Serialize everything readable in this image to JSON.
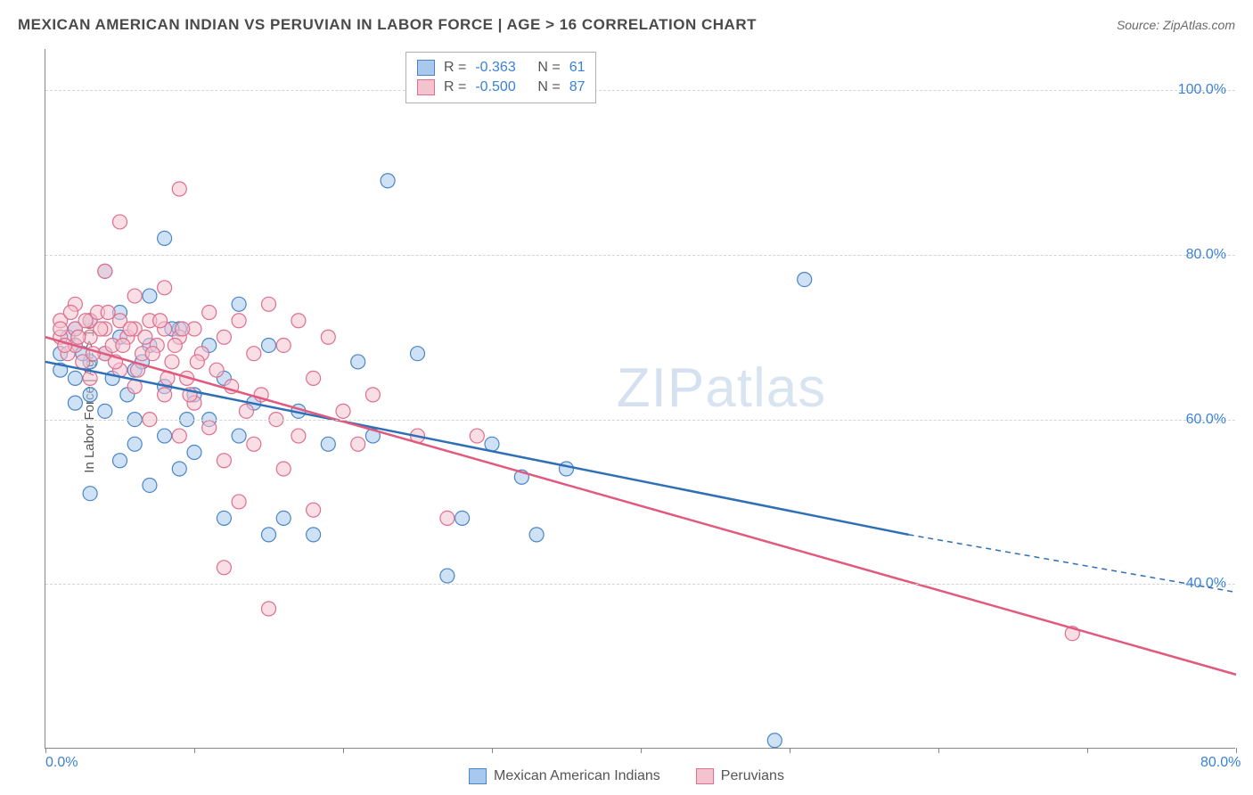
{
  "title": "MEXICAN AMERICAN INDIAN VS PERUVIAN IN LABOR FORCE | AGE > 16 CORRELATION CHART",
  "source": "Source: ZipAtlas.com",
  "y_axis_title": "In Labor Force | Age > 16",
  "watermark": {
    "bold": "ZIP",
    "thin": "atlas"
  },
  "chart": {
    "type": "scatter",
    "background_color": "#ffffff",
    "grid_color": "#d5d5d5",
    "axis_color": "#888888",
    "xlim": [
      0,
      80
    ],
    "ylim": [
      20,
      105
    ],
    "x_ticks": [
      0,
      10,
      20,
      30,
      40,
      50,
      60,
      70,
      80
    ],
    "x_tick_labels": {
      "0": "0.0%",
      "80": "80.0%"
    },
    "y_gridlines": [
      40,
      60,
      80,
      100
    ],
    "y_tick_labels": {
      "40": "40.0%",
      "60": "60.0%",
      "80": "80.0%",
      "100": "100.0%"
    },
    "label_color": "#3b82d6",
    "label_fontsize": 16,
    "marker_radius": 8,
    "marker_opacity": 0.55,
    "marker_stroke_width": 1.2,
    "line_width": 2.5
  },
  "series": [
    {
      "name": "Mexican American Indians",
      "fill_color": "#a8c8ed",
      "stroke_color": "#4a86c7",
      "line_color": "#2f6fb5",
      "r_label": "R =",
      "r_value": "-0.363",
      "n_label": "N =",
      "n_value": "61",
      "trend": {
        "x1": 0,
        "y1": 67,
        "x2_solid": 58,
        "y2_solid": 46,
        "x2_dash": 80,
        "y2_dash": 39
      },
      "points": [
        [
          1,
          68
        ],
        [
          1,
          66
        ],
        [
          2,
          69
        ],
        [
          2,
          65
        ],
        [
          2,
          71
        ],
        [
          3,
          67
        ],
        [
          3,
          63
        ],
        [
          3,
          72
        ],
        [
          4,
          68
        ],
        [
          4,
          61
        ],
        [
          5,
          70
        ],
        [
          5,
          55
        ],
        [
          5,
          73
        ],
        [
          6,
          66
        ],
        [
          6,
          60
        ],
        [
          7,
          69
        ],
        [
          7,
          52
        ],
        [
          8,
          82
        ],
        [
          8,
          64
        ],
        [
          8,
          58
        ],
        [
          9,
          71
        ],
        [
          10,
          63
        ],
        [
          10,
          56
        ],
        [
          11,
          69
        ],
        [
          11,
          60
        ],
        [
          12,
          65
        ],
        [
          12,
          48
        ],
        [
          13,
          74
        ],
        [
          13,
          58
        ],
        [
          14,
          62
        ],
        [
          15,
          69
        ],
        [
          15,
          46
        ],
        [
          16,
          48
        ],
        [
          17,
          61
        ],
        [
          18,
          46
        ],
        [
          19,
          57
        ],
        [
          21,
          67
        ],
        [
          22,
          58
        ],
        [
          23,
          89
        ],
        [
          25,
          68
        ],
        [
          27,
          41
        ],
        [
          28,
          48
        ],
        [
          30,
          57
        ],
        [
          32,
          53
        ],
        [
          33,
          46
        ],
        [
          35,
          54
        ],
        [
          49,
          21
        ],
        [
          51,
          77
        ],
        [
          3,
          51
        ],
        [
          6,
          57
        ],
        [
          9,
          54
        ],
        [
          4,
          78
        ],
        [
          7,
          75
        ],
        [
          2,
          62
        ],
        [
          1.5,
          70
        ],
        [
          2.5,
          68
        ],
        [
          4.5,
          65
        ],
        [
          5.5,
          63
        ],
        [
          6.5,
          67
        ],
        [
          8.5,
          71
        ],
        [
          9.5,
          60
        ]
      ]
    },
    {
      "name": "Peruvians",
      "fill_color": "#f4c3d0",
      "stroke_color": "#de6f8e",
      "line_color": "#e15a7e",
      "r_label": "R =",
      "r_value": "-0.500",
      "n_label": "N =",
      "n_value": "87",
      "trend": {
        "x1": 0,
        "y1": 70,
        "x2_solid": 80,
        "y2_solid": 29,
        "x2_dash": 80,
        "y2_dash": 29
      },
      "points": [
        [
          1,
          70
        ],
        [
          1,
          72
        ],
        [
          1.5,
          68
        ],
        [
          2,
          71
        ],
        [
          2,
          69
        ],
        [
          2,
          74
        ],
        [
          2.5,
          67
        ],
        [
          3,
          72
        ],
        [
          3,
          70
        ],
        [
          3,
          65
        ],
        [
          3.5,
          73
        ],
        [
          4,
          71
        ],
        [
          4,
          68
        ],
        [
          4,
          78
        ],
        [
          4.5,
          69
        ],
        [
          5,
          72
        ],
        [
          5,
          66
        ],
        [
          5,
          84
        ],
        [
          5.5,
          70
        ],
        [
          6,
          71
        ],
        [
          6,
          64
        ],
        [
          6,
          75
        ],
        [
          6.5,
          68
        ],
        [
          7,
          72
        ],
        [
          7,
          60
        ],
        [
          7.5,
          69
        ],
        [
          8,
          71
        ],
        [
          8,
          63
        ],
        [
          8,
          76
        ],
        [
          8.5,
          67
        ],
        [
          9,
          70
        ],
        [
          9,
          58
        ],
        [
          9,
          88
        ],
        [
          9.5,
          65
        ],
        [
          10,
          71
        ],
        [
          10,
          62
        ],
        [
          10.5,
          68
        ],
        [
          11,
          73
        ],
        [
          11,
          59
        ],
        [
          11.5,
          66
        ],
        [
          12,
          70
        ],
        [
          12,
          55
        ],
        [
          12,
          42
        ],
        [
          12.5,
          64
        ],
        [
          13,
          72
        ],
        [
          13,
          50
        ],
        [
          13.5,
          61
        ],
        [
          14,
          68
        ],
        [
          14,
          57
        ],
        [
          14.5,
          63
        ],
        [
          15,
          74
        ],
        [
          15,
          37
        ],
        [
          15.5,
          60
        ],
        [
          16,
          69
        ],
        [
          16,
          54
        ],
        [
          17,
          72
        ],
        [
          17,
          58
        ],
        [
          18,
          65
        ],
        [
          18,
          49
        ],
        [
          19,
          70
        ],
        [
          20,
          61
        ],
        [
          21,
          57
        ],
        [
          22,
          63
        ],
        [
          25,
          58
        ],
        [
          27,
          48
        ],
        [
          29,
          58
        ],
        [
          69,
          34
        ],
        [
          1,
          71
        ],
        [
          1.3,
          69
        ],
        [
          1.7,
          73
        ],
        [
          2.2,
          70
        ],
        [
          2.7,
          72
        ],
        [
          3.2,
          68
        ],
        [
          3.7,
          71
        ],
        [
          4.2,
          73
        ],
        [
          4.7,
          67
        ],
        [
          5.2,
          69
        ],
        [
          5.7,
          71
        ],
        [
          6.2,
          66
        ],
        [
          6.7,
          70
        ],
        [
          7.2,
          68
        ],
        [
          7.7,
          72
        ],
        [
          8.2,
          65
        ],
        [
          8.7,
          69
        ],
        [
          9.2,
          71
        ],
        [
          9.7,
          63
        ],
        [
          10.2,
          67
        ]
      ]
    }
  ],
  "stats_box": {
    "swatch_size": 20
  },
  "bottom_legend": [
    {
      "series": 0
    },
    {
      "series": 1
    }
  ]
}
